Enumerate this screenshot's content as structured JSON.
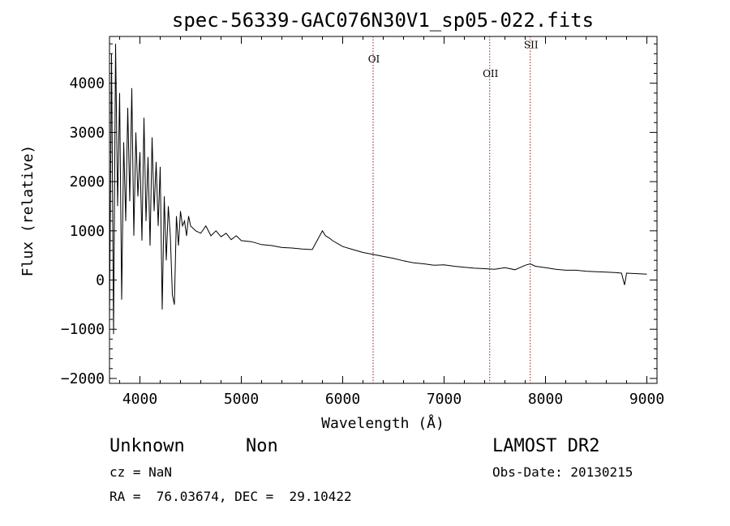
{
  "chart_data": {
    "type": "line",
    "title": "spec-56339-GAC076N30V1_sp05-022.fits",
    "xlabel": "Wavelength (Å)",
    "ylabel": "Flux (relative)",
    "xlim": [
      3700,
      9100
    ],
    "ylim": [
      -2100,
      4950
    ],
    "xticks": [
      4000,
      5000,
      6000,
      7000,
      8000,
      9000
    ],
    "yticks": [
      -2000,
      -1000,
      0,
      1000,
      2000,
      3000,
      4000
    ],
    "grid": false,
    "series": [
      {
        "x": [
          3700,
          3720,
          3740,
          3760,
          3780,
          3800,
          3820,
          3840,
          3860,
          3880,
          3900,
          3920,
          3940,
          3960,
          3980,
          4000,
          4020,
          4040,
          4060,
          4080,
          4100,
          4120,
          4140,
          4160,
          4180,
          4200,
          4220,
          4240,
          4260,
          4280,
          4300,
          4320,
          4340,
          4360,
          4380,
          4400,
          4420,
          4440,
          4460,
          4480,
          4500,
          4550,
          4600,
          4650,
          4700,
          4750,
          4800,
          4850,
          4900,
          4950,
          5000,
          5100,
          5200,
          5300,
          5400,
          5500,
          5600,
          5700,
          5800,
          5830,
          5870,
          5900,
          6000,
          6100,
          6200,
          6300,
          6400,
          6500,
          6600,
          6700,
          6800,
          6900,
          7000,
          7100,
          7200,
          7300,
          7400,
          7500,
          7600,
          7700,
          7800,
          7850,
          7900,
          8000,
          8100,
          8200,
          8300,
          8400,
          8500,
          8600,
          8700,
          8750,
          8780,
          8800,
          8900,
          9000
        ],
        "y": [
          -800,
          4600,
          -1100,
          4800,
          1500,
          3800,
          -400,
          2800,
          1200,
          3500,
          1600,
          3900,
          900,
          3000,
          1700,
          2600,
          800,
          3300,
          1200,
          2500,
          700,
          2900,
          1400,
          2400,
          1100,
          2300,
          -600,
          1700,
          400,
          1500,
          900,
          -300,
          -500,
          1300,
          700,
          1400,
          1100,
          1200,
          900,
          1300,
          1100,
          1000,
          950,
          1100,
          900,
          1000,
          880,
          950,
          820,
          900,
          800,
          780,
          720,
          700,
          660,
          650,
          630,
          620,
          1000,
          900,
          850,
          800,
          680,
          620,
          560,
          520,
          480,
          440,
          390,
          350,
          330,
          300,
          310,
          280,
          260,
          240,
          230,
          220,
          250,
          210,
          300,
          330,
          280,
          250,
          220,
          200,
          200,
          180,
          170,
          160,
          150,
          140,
          -100,
          140,
          130,
          120
        ]
      }
    ],
    "annotations": [
      {
        "label": "OI",
        "x": 6300
      },
      {
        "label": "OII",
        "x": 7450
      },
      {
        "label": "SII",
        "x": 7850
      }
    ],
    "ann_y_labels": [
      4420,
      4130,
      4710
    ]
  },
  "footer": {
    "class_label": "Unknown",
    "subclass_label": "Non",
    "survey": "LAMOST DR2",
    "cz": "cz = NaN",
    "obs_date": "Obs-Date: 20130215",
    "coords": "RA =  76.03674, DEC =  29.10422"
  }
}
